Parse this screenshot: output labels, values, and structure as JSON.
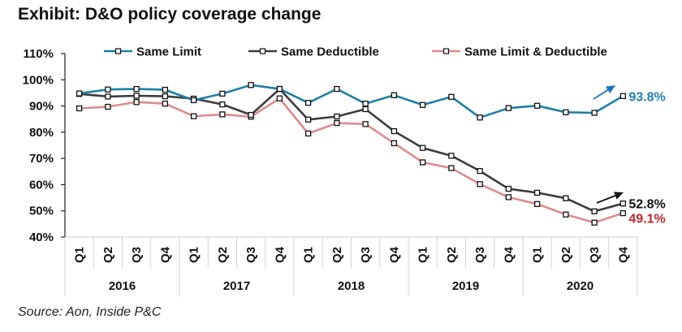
{
  "title": "Exhibit: D&O policy coverage change",
  "source": "Source: Aon, Inside P&C",
  "chart_data": {
    "type": "line",
    "title": "Exhibit: D&O policy coverage change",
    "xlabel": "",
    "ylabel": "",
    "ylim": [
      40,
      110
    ],
    "yticks": [
      40,
      50,
      60,
      70,
      80,
      90,
      100,
      110
    ],
    "ytick_format": "%",
    "grid": false,
    "legend_position": "top",
    "categories": [
      "Q1",
      "Q2",
      "Q3",
      "Q4",
      "Q1",
      "Q2",
      "Q3",
      "Q4",
      "Q1",
      "Q2",
      "Q3",
      "Q4",
      "Q1",
      "Q2",
      "Q3",
      "Q4",
      "Q1",
      "Q2",
      "Q3",
      "Q4"
    ],
    "groups": [
      {
        "label": "2016",
        "count": 4
      },
      {
        "label": "2017",
        "count": 4
      },
      {
        "label": "2018",
        "count": 4
      },
      {
        "label": "2019",
        "count": 4
      },
      {
        "label": "2020",
        "count": 4
      }
    ],
    "series": [
      {
        "name": "Same Limit",
        "color": "#1f7fa6",
        "values": [
          94.8,
          96.3,
          96.5,
          96.2,
          92.2,
          94.7,
          98.0,
          96.5,
          91.2,
          96.5,
          90.9,
          94.1,
          90.4,
          93.5,
          85.6,
          89.2,
          90.1,
          87.6,
          87.4,
          93.8
        ],
        "end_label": "93.8%",
        "end_label_color": "#1f7fbf",
        "arrow_color": "#1f72c0"
      },
      {
        "name": "Same Deductible",
        "color": "#3c3c3c",
        "values": [
          94.6,
          93.6,
          93.9,
          93.7,
          92.8,
          90.6,
          86.6,
          96.5,
          84.8,
          86.0,
          88.8,
          80.4,
          74.0,
          71.0,
          65.2,
          58.4,
          56.9,
          54.8,
          49.8,
          52.8
        ],
        "end_label": "52.8%",
        "end_label_color": "#111111",
        "arrow_color": "#111111"
      },
      {
        "name": "Same Limit & Deductible",
        "color": "#e08a8a",
        "values": [
          89.1,
          89.7,
          91.5,
          90.9,
          86.1,
          86.8,
          85.9,
          92.9,
          79.5,
          83.5,
          83.1,
          75.8,
          68.5,
          66.3,
          60.2,
          55.2,
          52.6,
          48.6,
          45.5,
          49.1
        ],
        "end_label": "49.1%",
        "end_label_color": "#c0262c"
      }
    ]
  }
}
